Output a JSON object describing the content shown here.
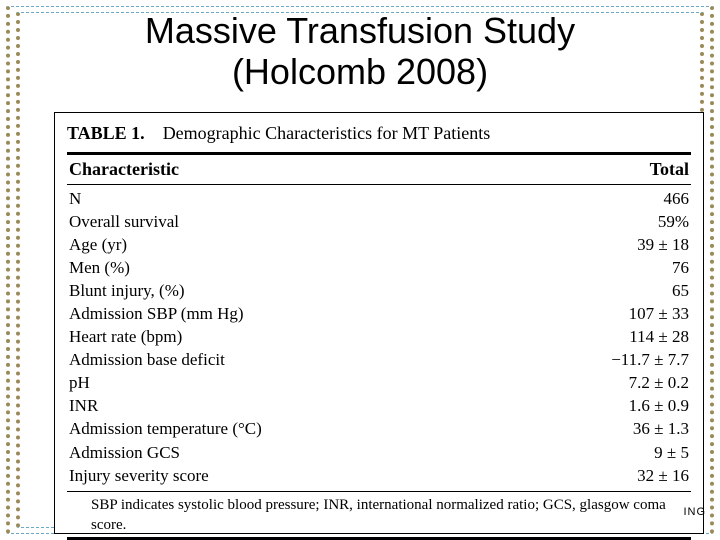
{
  "border": {
    "outer_dash_color": "#6aa9c4",
    "outer_dot_color": "#9a8a5a",
    "inner_dash_color": "#6aa9c4",
    "inner_dot_color": "#9a8a5a"
  },
  "title": {
    "line1": "Massive Transfusion Study",
    "line2": "(Holcomb 2008)",
    "fontsize": 36,
    "color": "#000000"
  },
  "table": {
    "type": "table",
    "caption_label": "TABLE 1.",
    "caption_text": "Demographic Characteristics for MT Patients",
    "header": {
      "characteristic": "Characteristic",
      "total": "Total"
    },
    "rows": [
      {
        "characteristic": "N",
        "total": "466"
      },
      {
        "characteristic": "Overall survival",
        "total": "59%"
      },
      {
        "characteristic": "Age (yr)",
        "total": "39 ± 18"
      },
      {
        "characteristic": "Men (%)",
        "total": "76"
      },
      {
        "characteristic": "Blunt injury, (%)",
        "total": "65"
      },
      {
        "characteristic": "Admission SBP (mm Hg)",
        "total": "107 ± 33"
      },
      {
        "characteristic": "Heart rate (bpm)",
        "total": "114 ± 28"
      },
      {
        "characteristic": "Admission base deficit",
        "total": "−11.7 ± 7.7"
      },
      {
        "characteristic": "pH",
        "total": "7.2 ± 0.2"
      },
      {
        "characteristic": "INR",
        "total": "1.6 ± 0.9"
      },
      {
        "characteristic": "Admission temperature (°C)",
        "total": "36 ± 1.3"
      },
      {
        "characteristic": "Admission GCS",
        "total": "9 ± 5"
      },
      {
        "characteristic": "Injury severity score",
        "total": "32 ± 16"
      }
    ],
    "footnote": "SBP indicates systolic blood pressure; INR, international normalized ratio; GCS, glasgow coma score.",
    "body_fontsize": 17,
    "header_fontsize": 18,
    "caption_fontsize": 18,
    "footnote_fontsize": 15,
    "text_color": "#000000",
    "background_color": "#ffffff",
    "border_color": "#000000"
  },
  "fragment": "ING"
}
